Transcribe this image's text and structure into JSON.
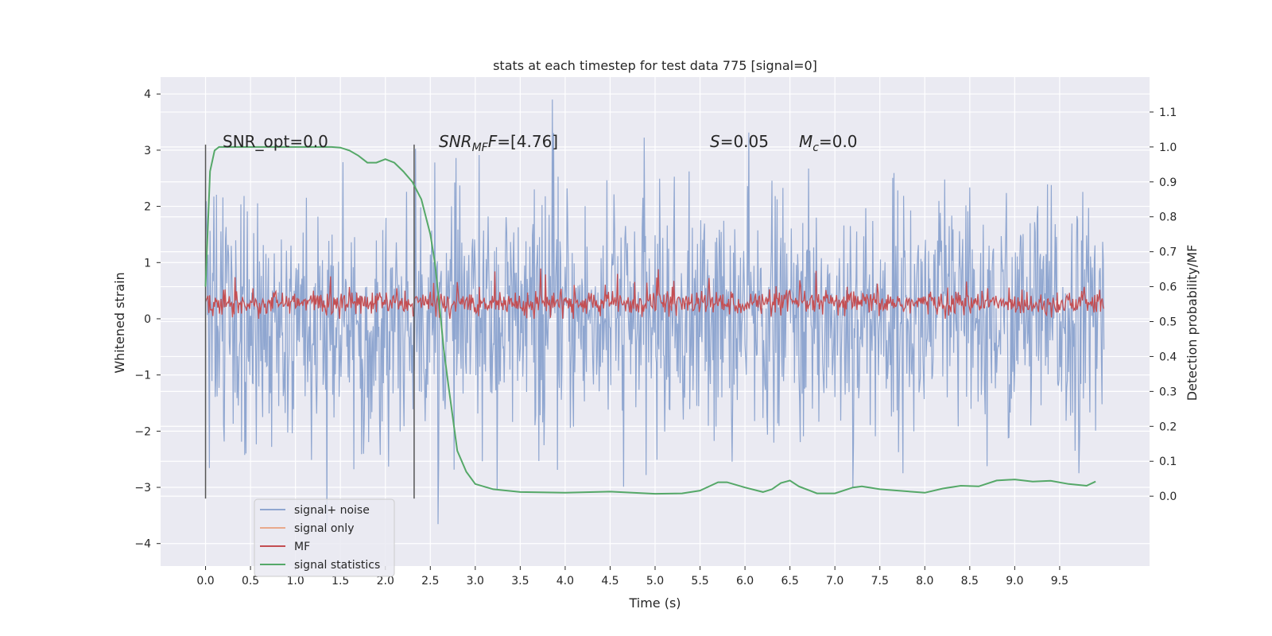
{
  "chart_data": {
    "type": "line",
    "title": "stats at each timestep for test data 775 [signal=0]",
    "xlabel": "Time (s)",
    "ylabel": "Whitened strain",
    "ylabel_right": "Detection probability/MF",
    "xlim": [
      -0.5,
      10.5
    ],
    "ylim": [
      -4.4,
      4.3
    ],
    "ylim_right": [
      -0.2,
      1.2
    ],
    "x_ticks": [
      "0.0",
      "0.5",
      "1.0",
      "1.5",
      "2.0",
      "2.5",
      "3.0",
      "3.5",
      "4.0",
      "4.5",
      "5.0",
      "5.5",
      "6.0",
      "6.5",
      "7.0",
      "7.5",
      "8.0",
      "8.5",
      "9.0",
      "9.5"
    ],
    "y_ticks": [
      "−4",
      "−3",
      "−2",
      "−1",
      "0",
      "1",
      "2",
      "3",
      "4"
    ],
    "y_ticks_right": [
      "0.0",
      "0.1",
      "0.2",
      "0.3",
      "0.4",
      "0.5",
      "0.6",
      "0.7",
      "0.8",
      "0.9",
      "1.0",
      "1.1"
    ],
    "grid": true,
    "legend_position": "lower-left",
    "annotations": {
      "snr_opt": "SNR_opt=0.0",
      "snr_mf_main": "SNR",
      "snr_mf_sub": "MF",
      "snr_mf_rest": "=[4.76]",
      "s_main": "S",
      "s_rest": "=0.05",
      "mc_main": "M",
      "mc_sub": "c",
      "mc_rest": "=0.0"
    },
    "vlines": [
      0.0,
      2.32
    ],
    "vline_range": [
      -3.2,
      3.1
    ],
    "series": [
      {
        "name": "signal+ noise",
        "color": "#8fa6d0",
        "approx_range": [
          -4.0,
          3.9
        ],
        "typical_envelope": [
          -2.0,
          2.3
        ]
      },
      {
        "name": "signal only",
        "color": "#e9a98b",
        "values": []
      },
      {
        "name": "MF",
        "color": "#c44e52",
        "approx_range": [
          0.0,
          1.0
        ],
        "typical_band": [
          0.05,
          0.55
        ]
      },
      {
        "name": "signal statistics",
        "color": "#55a868",
        "axis": "right",
        "x": [
          0.0,
          0.05,
          0.1,
          0.15,
          0.2,
          0.3,
          0.5,
          0.8,
          1.0,
          1.2,
          1.4,
          1.5,
          1.6,
          1.7,
          1.8,
          1.9,
          2.0,
          2.1,
          2.2,
          2.3,
          2.4,
          2.5,
          2.55,
          2.6,
          2.65,
          2.7,
          2.8,
          2.9,
          3.0,
          3.2,
          3.5,
          4.0,
          4.5,
          5.0,
          5.3,
          5.5,
          5.7,
          5.8,
          6.0,
          6.2,
          6.3,
          6.4,
          6.5,
          6.6,
          6.8,
          7.0,
          7.2,
          7.3,
          7.5,
          8.0,
          8.2,
          8.4,
          8.6,
          8.8,
          9.0,
          9.2,
          9.4,
          9.6,
          9.8,
          9.9
        ],
        "values": [
          0.6,
          0.93,
          0.99,
          1.0,
          1.0,
          1.0,
          1.0,
          1.0,
          1.0,
          1.0,
          1.0,
          0.998,
          0.99,
          0.975,
          0.955,
          0.955,
          0.965,
          0.955,
          0.93,
          0.9,
          0.85,
          0.75,
          0.67,
          0.55,
          0.42,
          0.32,
          0.13,
          0.07,
          0.035,
          0.02,
          0.012,
          0.01,
          0.013,
          0.007,
          0.008,
          0.016,
          0.04,
          0.04,
          0.025,
          0.012,
          0.02,
          0.038,
          0.045,
          0.028,
          0.008,
          0.008,
          0.025,
          0.028,
          0.02,
          0.01,
          0.022,
          0.03,
          0.028,
          0.045,
          0.048,
          0.042,
          0.044,
          0.035,
          0.03,
          0.042
        ]
      }
    ]
  }
}
